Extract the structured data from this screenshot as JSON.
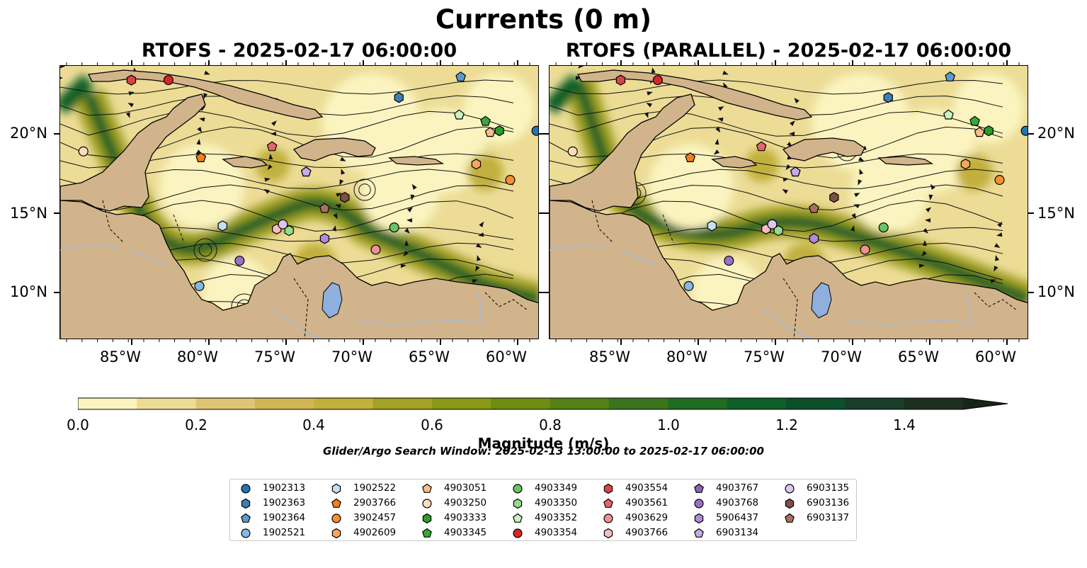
{
  "title": "Currents (0 m)",
  "panels": [
    {
      "title": "RTOFS - 2025-02-17 06:00:00"
    },
    {
      "title": "RTOFS (PARALLEL) - 2025-02-17 06:00:00"
    }
  ],
  "axes": {
    "lon_labels": [
      "85°W",
      "80°W",
      "75°W",
      "70°W",
      "65°W",
      "60°W"
    ],
    "lat_labels": [
      "20°N",
      "15°N",
      "10°N"
    ]
  },
  "colorbar": {
    "label": "Magnitude (m/s)",
    "ticks": [
      "0.0",
      "0.2",
      "0.4",
      "0.6",
      "0.8",
      "1.0",
      "1.2",
      "1.4"
    ],
    "colors": [
      "#fbf4c0",
      "#ecdc96",
      "#dec575",
      "#d2b655",
      "#c1b03c",
      "#a3a126",
      "#8a9a16",
      "#6f8d12",
      "#548016",
      "#3b741e",
      "#216a22",
      "#0f5f28",
      "#0d4f2a",
      "#183d28",
      "#1b2f20",
      "#172518"
    ],
    "extend": "max"
  },
  "search_window": "Glider/Argo Search Window: 2025-02-13 13:00:00 to 2025-02-17 06:00:00",
  "colors": {
    "land": "#d2b48c",
    "lake": "#8fb0dd",
    "river": "#a8b8cc",
    "ocean_low": "#fbf4c0",
    "ocean_high": "#1b5e2a"
  },
  "floats": [
    {
      "id": "1902313",
      "marker": "circle",
      "color": "#1f77b4"
    },
    {
      "id": "1902363",
      "marker": "hexagon",
      "color": "#3c7fb8"
    },
    {
      "id": "1902364",
      "marker": "pentagon",
      "color": "#5a9ad0"
    },
    {
      "id": "1902521",
      "marker": "circle",
      "color": "#86b8e3"
    },
    {
      "id": "1902522",
      "marker": "hexagon",
      "color": "#c5def2"
    },
    {
      "id": "2903766",
      "marker": "pentagon",
      "color": "#f07f1c"
    },
    {
      "id": "3902457",
      "marker": "circle",
      "color": "#f7902e"
    },
    {
      "id": "4902609",
      "marker": "hexagon",
      "color": "#f9a65a"
    },
    {
      "id": "4903051",
      "marker": "pentagon",
      "color": "#fbbd85"
    },
    {
      "id": "4903250",
      "marker": "circle",
      "color": "#fddcbd"
    },
    {
      "id": "4903333",
      "marker": "hexagon",
      "color": "#2c9b2c"
    },
    {
      "id": "4903345",
      "marker": "pentagon",
      "color": "#38a83a"
    },
    {
      "id": "4903349",
      "marker": "circle",
      "color": "#6cc264"
    },
    {
      "id": "4903350",
      "marker": "hexagon",
      "color": "#98d98e"
    },
    {
      "id": "4903352",
      "marker": "pentagon",
      "color": "#c9f2bf"
    },
    {
      "id": "4903354",
      "marker": "circle",
      "color": "#d62728"
    },
    {
      "id": "4903554",
      "marker": "hexagon",
      "color": "#d94448"
    },
    {
      "id": "4903561",
      "marker": "pentagon",
      "color": "#e2676a"
    },
    {
      "id": "4903629",
      "marker": "circle",
      "color": "#ee9094"
    },
    {
      "id": "4903766",
      "marker": "hexagon",
      "color": "#f7bcbd"
    },
    {
      "id": "4903767",
      "marker": "pentagon",
      "color": "#8c63b8"
    },
    {
      "id": "4903768",
      "marker": "circle",
      "color": "#9b70c8"
    },
    {
      "id": "5906437",
      "marker": "hexagon",
      "color": "#b08bd8"
    },
    {
      "id": "6903134",
      "marker": "pentagon",
      "color": "#c7aae6"
    },
    {
      "id": "6903135",
      "marker": "circle",
      "color": "#dcc5f0"
    },
    {
      "id": "6903136",
      "marker": "hexagon",
      "color": "#7d4f45"
    },
    {
      "id": "6903137",
      "marker": "pentagon",
      "color": "#a86f60"
    }
  ]
}
